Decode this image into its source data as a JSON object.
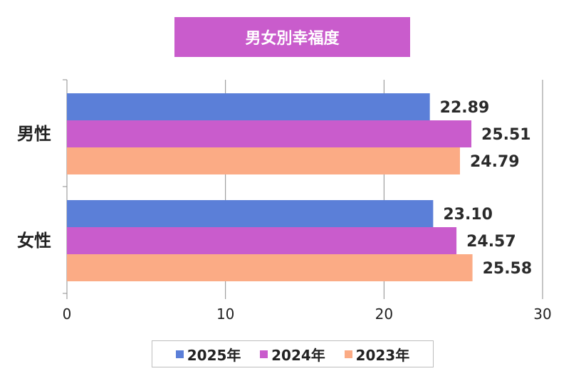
{
  "chart_data": {
    "type": "bar",
    "orientation": "horizontal",
    "title": "男女別幸福度",
    "categories": [
      "男性",
      "女性"
    ],
    "series": [
      {
        "name": "2025年",
        "values": [
          22.89,
          23.1
        ],
        "color": "#5b7fd8"
      },
      {
        "name": "2024年",
        "values": [
          25.51,
          24.57
        ],
        "color": "#c95ccc"
      },
      {
        "name": "2023年",
        "values": [
          24.79,
          25.58
        ],
        "color": "#fbab85"
      }
    ],
    "value_labels": [
      [
        "22.89",
        "23.10"
      ],
      [
        "25.51",
        "24.57"
      ],
      [
        "24.79",
        "25.58"
      ]
    ],
    "xlim": [
      0,
      30
    ],
    "xticks": [
      "0",
      "10",
      "20",
      "30"
    ],
    "grid": true,
    "legend_position": "bottom",
    "title_background": "#c95ccc"
  }
}
